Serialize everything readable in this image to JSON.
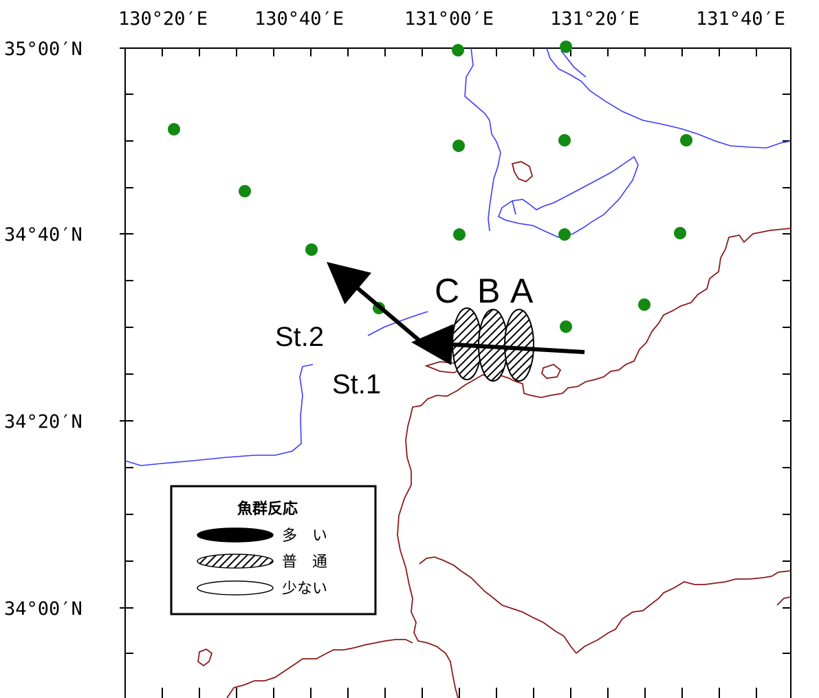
{
  "axes": {
    "lon_labels": [
      "130°20′E",
      "130°40′E",
      "131°00′E",
      "131°20′E",
      "131°40′E"
    ],
    "lat_labels": [
      "35°00′N",
      "34°40′N",
      "34°20′N",
      "34°00′N"
    ]
  },
  "schools": {
    "labels": [
      "C",
      "B",
      "A"
    ],
    "category": "普通"
  },
  "stations": {
    "st1": "St.1",
    "st2": "St.2"
  },
  "legend": {
    "title": "魚群反応",
    "items": [
      {
        "label": "多　い",
        "style": "filled"
      },
      {
        "label": "普　通",
        "style": "hatched"
      },
      {
        "label": "少ない",
        "style": "empty"
      }
    ]
  },
  "colors": {
    "station_dot": "#138a13",
    "coastline_japan": "#8b1a1a",
    "contour": "#3a3aff",
    "arrow": "#000000"
  }
}
